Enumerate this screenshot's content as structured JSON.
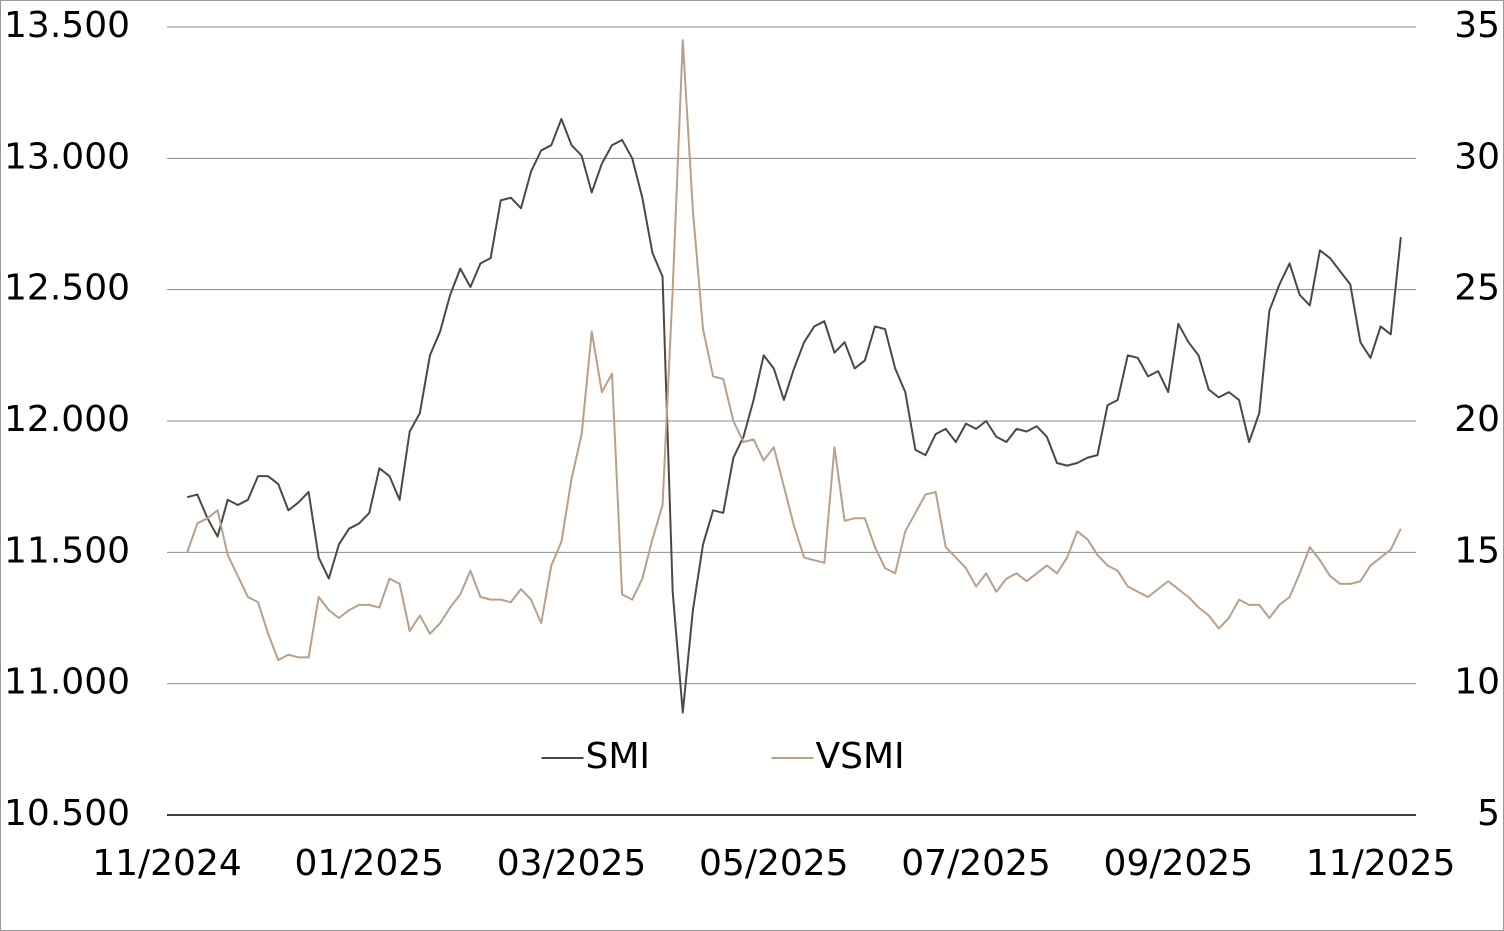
{
  "chart_data": {
    "type": "line",
    "categories": [
      "11/2024",
      null,
      null,
      null,
      null,
      null,
      null,
      null,
      null,
      null,
      null,
      null,
      null,
      null,
      null,
      null,
      null,
      null,
      null,
      null,
      "01/2025",
      null,
      null,
      null,
      null,
      null,
      null,
      null,
      null,
      null,
      null,
      null,
      null,
      null,
      null,
      null,
      null,
      null,
      null,
      null,
      "03/2025",
      null,
      null,
      null,
      null,
      null,
      null,
      null,
      null,
      null,
      null,
      null,
      null,
      null,
      null,
      null,
      null,
      null,
      null,
      null,
      "05/2025",
      null,
      null,
      null,
      null,
      null,
      null,
      null,
      null,
      null,
      null,
      null,
      null,
      null,
      null,
      null,
      null,
      null,
      null,
      null,
      "07/2025",
      null,
      null,
      null,
      null,
      null,
      null,
      null,
      null,
      null,
      null,
      null,
      null,
      null,
      null,
      null,
      null,
      null,
      null,
      null,
      "09/2025",
      null,
      null,
      null,
      null,
      null,
      null,
      null,
      null,
      null,
      null,
      null,
      null,
      null,
      null,
      null,
      null,
      null,
      null,
      null,
      "11/2025",
      null,
      null
    ],
    "series": [
      {
        "name": "SMI",
        "color": "#4d4842",
        "values": [
          null,
          null,
          11710,
          11720,
          11630,
          11560,
          11700,
          11680,
          11700,
          11790,
          11790,
          11760,
          11660,
          11690,
          11730,
          11480,
          11400,
          11530,
          11590,
          11610,
          11650,
          11820,
          11790,
          11700,
          11960,
          12030,
          12250,
          12340,
          12480,
          12580,
          12510,
          12600,
          12620,
          12840,
          12850,
          12810,
          12950,
          13030,
          13050,
          13150,
          13050,
          13010,
          12870,
          12980,
          13050,
          13070,
          13000,
          12850,
          12640,
          12550,
          11350,
          10890,
          11280,
          11530,
          11660,
          11650,
          11860,
          11940,
          12080,
          12250,
          12200,
          12080,
          12200,
          12300,
          12360,
          12380,
          12260,
          12300,
          12200,
          12230,
          12360,
          12350,
          12200,
          12110,
          11890,
          11870,
          11950,
          11970,
          11920,
          11990,
          11970,
          12000,
          11940,
          11920,
          11970,
          11960,
          11980,
          11940,
          11840,
          11830,
          11840,
          11860,
          11870,
          12060,
          12080,
          12250,
          12240,
          12170,
          12190,
          12110,
          12370,
          12300,
          12250,
          12120,
          12090,
          12110,
          12080,
          11920,
          12030,
          12420,
          12520,
          12600,
          12480,
          12440,
          12650,
          12620,
          12570,
          12520,
          12300,
          12240,
          12360,
          12330,
          12700
        ]
      },
      {
        "name": "VSMI",
        "color": "#b8a08a",
        "axis": "y2",
        "values": [
          null,
          null,
          15.0,
          16.1,
          16.3,
          16.6,
          14.9,
          14.1,
          13.3,
          13.1,
          11.9,
          10.9,
          11.1,
          11.0,
          11.0,
          13.3,
          12.8,
          12.5,
          12.8,
          13.0,
          13.0,
          12.9,
          14.0,
          13.8,
          12.0,
          12.6,
          11.9,
          12.3,
          12.9,
          13.4,
          14.3,
          13.3,
          13.2,
          13.2,
          13.1,
          13.6,
          13.2,
          12.3,
          14.5,
          15.4,
          17.8,
          19.5,
          23.4,
          21.1,
          21.8,
          13.4,
          13.2,
          14.0,
          15.5,
          16.8,
          25.0,
          34.5,
          28.0,
          23.5,
          21.7,
          21.6,
          20.0,
          19.2,
          19.3,
          18.5,
          19.0,
          17.5,
          16.0,
          14.8,
          14.7,
          14.6,
          19.0,
          16.2,
          16.3,
          16.3,
          15.2,
          14.4,
          14.2,
          15.8,
          16.5,
          17.2,
          17.3,
          15.2,
          14.8,
          14.4,
          13.7,
          14.2,
          13.5,
          14.0,
          14.2,
          13.9,
          14.2,
          14.5,
          14.2,
          14.8,
          15.8,
          15.5,
          14.9,
          14.5,
          14.3,
          13.7,
          13.5,
          13.3,
          13.6,
          13.9,
          13.6,
          13.3,
          12.9,
          12.6,
          12.1,
          12.5,
          13.2,
          13.0,
          13.0,
          12.5,
          13.0,
          13.3,
          14.2,
          15.2,
          14.7,
          14.1,
          13.8,
          13.8,
          13.9,
          14.5,
          14.8,
          15.1,
          15.9
        ]
      }
    ],
    "ylim": [
      10500,
      13500
    ],
    "yticks": [
      {
        "value": 10500,
        "label": "10.500"
      },
      {
        "value": 11000,
        "label": "11.000"
      },
      {
        "value": 11500,
        "label": "11.500"
      },
      {
        "value": 12000,
        "label": "12.000"
      },
      {
        "value": 12500,
        "label": "12.500"
      },
      {
        "value": 13000,
        "label": "13.000"
      },
      {
        "value": 13500,
        "label": "13.500"
      }
    ],
    "y2lim": [
      5,
      35
    ],
    "y2ticks": [
      5,
      10,
      15,
      20,
      25,
      30,
      35
    ],
    "grid": true,
    "legend": "lower center"
  }
}
